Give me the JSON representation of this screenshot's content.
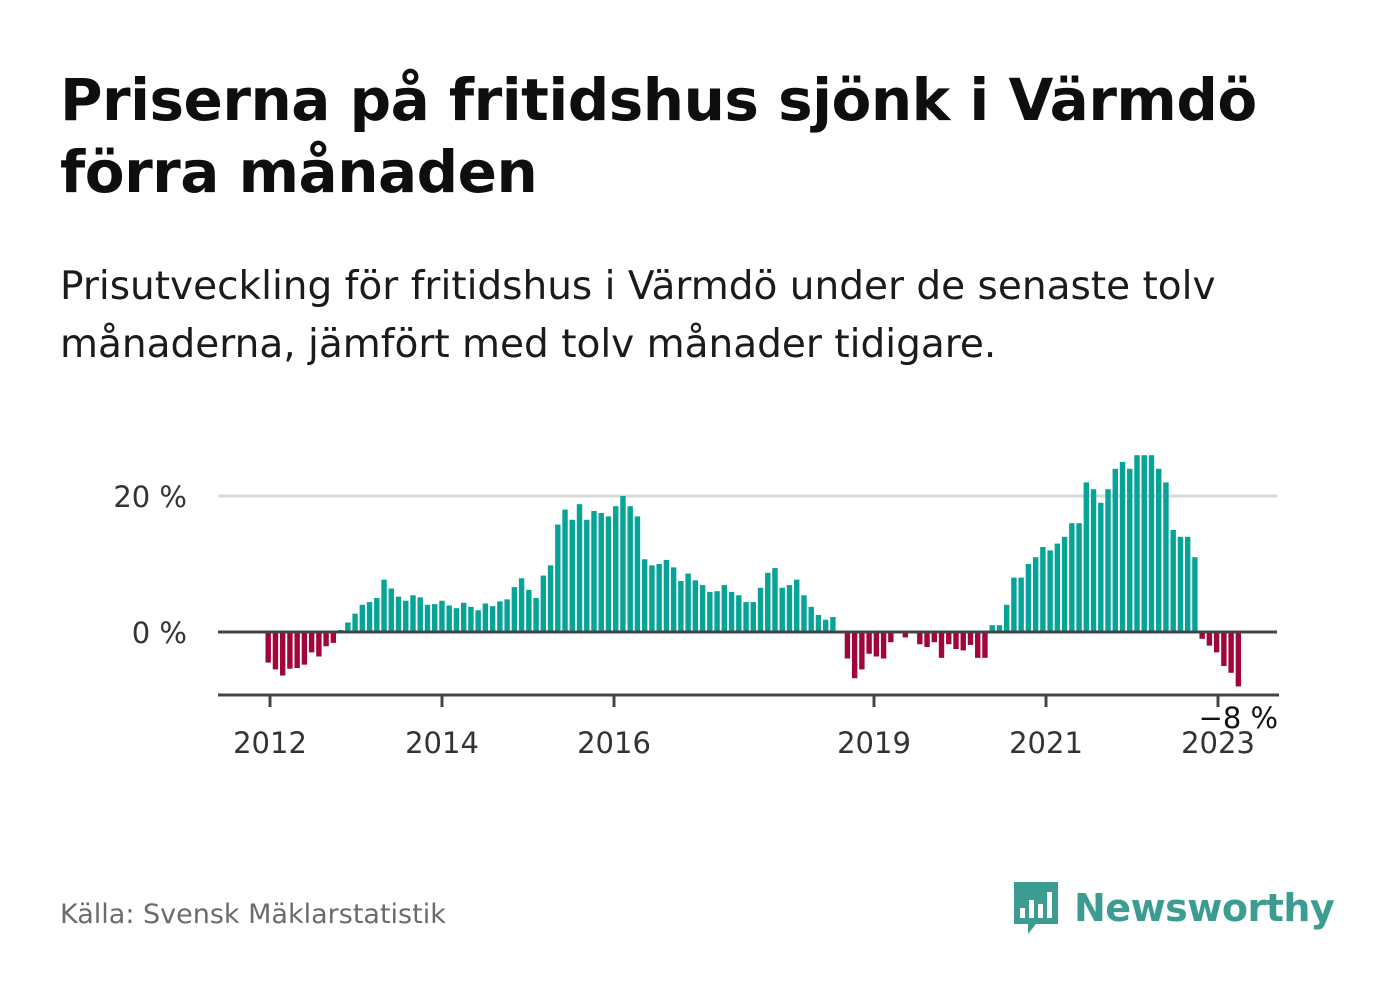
{
  "title": "Priserna på fritidshus sjönk i Värmdö förra månaden",
  "subtitle": "Prisutveckling för fritidshus i Värmdö under de senaste tolv månaderna, jämfört med tolv månader tidigare.",
  "source": "Källa: Svensk Mäklarstatistik",
  "brand": {
    "name": "Newsworthy",
    "icon": "newsworthy-logo-icon",
    "color": "#3d9c92"
  },
  "colors": {
    "positive": "#06a399",
    "negative": "#a0063c",
    "grid": "#d9d9d9",
    "axis": "#444444"
  },
  "chart_data": {
    "type": "bar",
    "y_tick_labels": [
      "0 %",
      "20 %"
    ],
    "x_tick_labels": [
      "2012",
      "2014",
      "2016",
      "2019",
      "2021",
      "2023"
    ],
    "final_label": "−8 %",
    "grid": true,
    "legend": "none",
    "ylim": [
      -9,
      30
    ],
    "series": [
      {
        "values": [
          -4.5,
          -5.5,
          -6.4,
          -5.4,
          -5.3,
          -4.8,
          -3.0,
          -3.6,
          -2.1,
          -1.6,
          0.3,
          1.4,
          2.7,
          4.0,
          4.4,
          5.0,
          7.7,
          6.4,
          5.2,
          4.6,
          5.4,
          5.1,
          4.0,
          4.1,
          4.6,
          3.9,
          3.5,
          4.3,
          3.7,
          3.2,
          4.2,
          3.8,
          4.5,
          4.8,
          6.6,
          7.9,
          6.2,
          5.0,
          8.3,
          9.8,
          15.8,
          18.0,
          16.5,
          18.8,
          16.5,
          17.8,
          17.5,
          17.0,
          18.5,
          20.0,
          18.5,
          17.0,
          10.7,
          9.8,
          10.0,
          10.6,
          9.5,
          7.5,
          8.6,
          7.6,
          6.9,
          5.9,
          6.0,
          6.9,
          5.9,
          5.4,
          4.4,
          4.4,
          6.5,
          8.7,
          9.4,
          6.5,
          6.9,
          7.7,
          5.4,
          3.7,
          2.5,
          1.8,
          2.2,
          0,
          -3.9,
          -6.8,
          -5.5,
          -3.2,
          -3.6,
          -3.9,
          -1.5,
          0,
          -0.8,
          0,
          -1.8,
          -2.2,
          -1.5,
          -3.8,
          -1.8,
          -2.5,
          -2.7,
          -1.9,
          -3.8,
          -3.8,
          1.0,
          1.0,
          4.0,
          8.0,
          8.0,
          10.0,
          11.0,
          12.5,
          12.0,
          13.0,
          14.0,
          16.0,
          16.0,
          22.0,
          21.0,
          19.0,
          21.0,
          24.0,
          25.0,
          24.0,
          26.0,
          26.0,
          26.0,
          24.0,
          22.0,
          15.0,
          14.0,
          14.0,
          11.0,
          -1.0,
          -2.0,
          -3.0,
          -5.0,
          -6.0,
          -8.0
        ]
      }
    ]
  }
}
